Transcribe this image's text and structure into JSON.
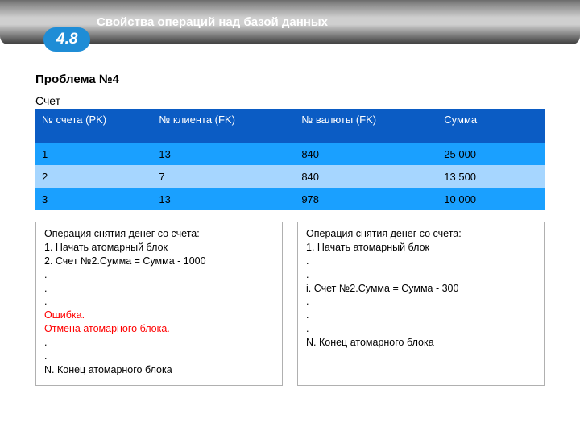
{
  "header": {
    "title": "Свойства операций над базой данных",
    "badge": "4.8",
    "badge_bg": "#1f8dd6",
    "badge_text_color": "#ffffff"
  },
  "problem_title": "Проблема №4",
  "table_caption": "Счет",
  "table": {
    "header_bg": "#0b5cc4",
    "header_text_color": "#ffffff",
    "row_colors": [
      "#1aa0ff",
      "#a6d6ff",
      "#1aa0ff"
    ],
    "col_widths": [
      "23%",
      "28%",
      "28%",
      "21%"
    ],
    "columns": [
      "№ счета (PK)",
      "№ клиента (FK)",
      "№ валюты (FK)",
      "Сумма"
    ],
    "rows": [
      [
        "1",
        "13",
        "840",
        "25 000"
      ],
      [
        "2",
        "7",
        "840",
        "13 500"
      ],
      [
        "3",
        "13",
        "978",
        "10 000"
      ]
    ]
  },
  "left_panel": {
    "lines": [
      {
        "text": "Операция снятия денег со счета:"
      },
      {
        "text": "1. Начать атомарный блок"
      },
      {
        "text": "2. Счет №2.Сумма = Сумма - 1000"
      },
      {
        "text": "."
      },
      {
        "text": "."
      },
      {
        "text": "."
      },
      {
        "text": "Ошибка.",
        "color": "#ff0000"
      },
      {
        "text": "Отмена атомарного блока.",
        "color": "#ff0000"
      },
      {
        "text": "."
      },
      {
        "text": "."
      },
      {
        "text": "N. Конец атомарного блока"
      }
    ]
  },
  "right_panel": {
    "lines": [
      {
        "text": "Операция снятия денег со счета:"
      },
      {
        "text": "1. Начать атомарный блок"
      },
      {
        "text": "."
      },
      {
        "text": "."
      },
      {
        "text": "i. Счет №2.Сумма = Сумма - 300"
      },
      {
        "text": "."
      },
      {
        "text": "."
      },
      {
        "text": "."
      },
      {
        "text": "N. Конец атомарного блока"
      }
    ]
  }
}
